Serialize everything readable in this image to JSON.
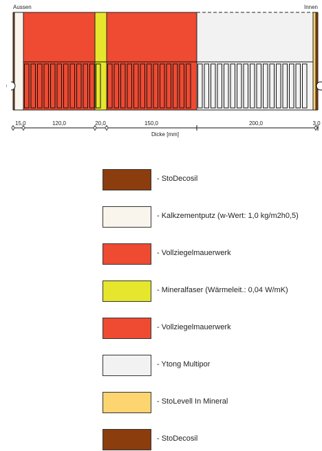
{
  "labels": {
    "outside": "Aussen",
    "inside": "Innen",
    "axis_title": "Dicke [mm]"
  },
  "layers": [
    {
      "name": "StoDecosil",
      "thickness_label": "",
      "color": "#8b3d0e",
      "pattern": "none",
      "hatched": false
    },
    {
      "name": "Kalkzementputz (w-Wert: 1,0 kg/m2h0,5)",
      "thickness_label": "15,0",
      "color": "#faf5ec",
      "pattern": "none",
      "hatched": false
    },
    {
      "name": "Vollziegelmauerwerk",
      "thickness_label": "120,0",
      "color": "#ef4a32",
      "pattern": "brick",
      "hatched": false
    },
    {
      "name": "Mineralfaser (Wärmeleit.: 0,04 W/mK)",
      "thickness_label": "20,0",
      "color": "#e6e62c",
      "pattern": "brick",
      "hatched": false
    },
    {
      "name": "Vollziegelmauerwerk",
      "thickness_label": "150,0",
      "color": "#ef4a32",
      "pattern": "brick",
      "hatched": false
    },
    {
      "name": "Ytong Multipor",
      "thickness_label": "200,0",
      "color": "#f2f2f2",
      "pattern": "brick",
      "hatched": true
    },
    {
      "name": "StoLevell In Mineral",
      "thickness_label": "",
      "color": "#fcd470",
      "pattern": "none",
      "hatched": false
    },
    {
      "name": "StoDecosil",
      "thickness_label": "3,0",
      "color": "#8b3d0e",
      "pattern": "none",
      "hatched": false
    }
  ],
  "legend_items": [
    {
      "label": "- StoDecosil",
      "color": "#8b3d0e"
    },
    {
      "label": "- Kalkzementputz (w-Wert: 1,0 kg/m2h0,5)",
      "color": "#faf5ec"
    },
    {
      "label": "- Vollziegelmauerwerk",
      "color": "#ef4a32"
    },
    {
      "label": "- Mineralfaser (Wärmeleit.: 0,04 W/mK)",
      "color": "#e6e62c"
    },
    {
      "label": "- Vollziegelmauerwerk",
      "color": "#ef4a32"
    },
    {
      "label": "- Ytong Multipor",
      "color": "#f2f2f2"
    },
    {
      "label": "- StoLevell In Mineral",
      "color": "#fcd470"
    },
    {
      "label": "- StoDecosil",
      "color": "#8b3d0e"
    }
  ],
  "colors": {
    "outline": "#222222",
    "dashed": "#222222",
    "brick_lines": "#111111"
  }
}
